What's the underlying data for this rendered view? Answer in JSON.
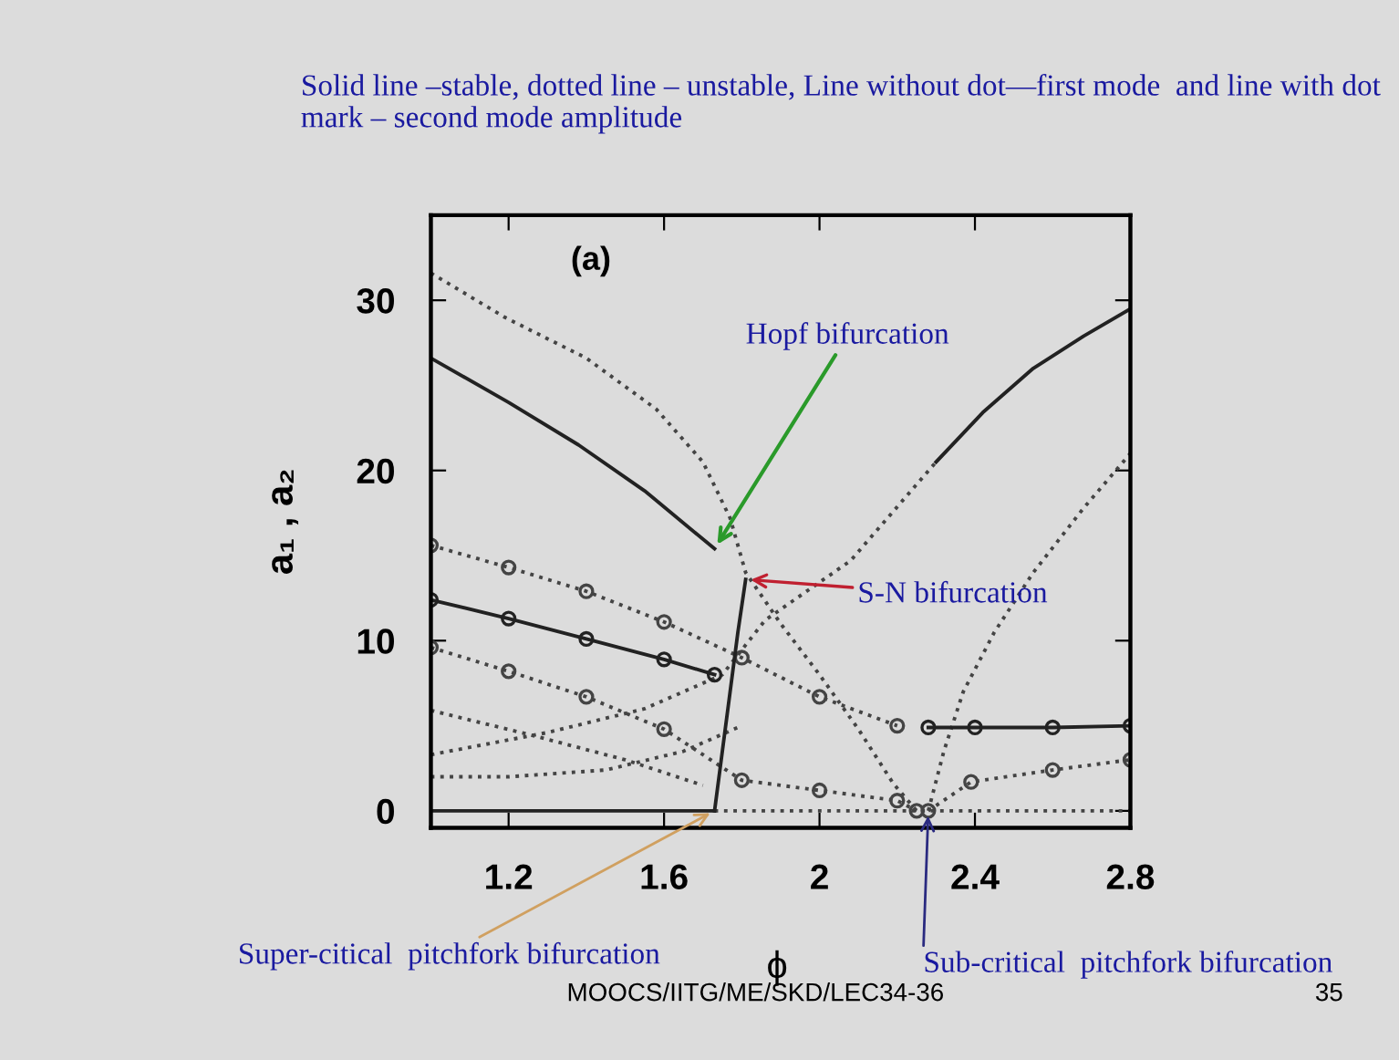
{
  "chart_data": {
    "type": "line",
    "title": "Solid line –stable, dotted line – unstable, Line without dot—first mode  and line with dot mark – second mode amplitude",
    "xlabel": "ϕ",
    "ylabel": "a₁ , a₂",
    "xlim": [
      1.0,
      2.8
    ],
    "ylim": [
      -1,
      35
    ],
    "xticks": [
      1.2,
      1.6,
      2,
      2.4,
      2.8
    ],
    "yticks": [
      0,
      10,
      20,
      30
    ],
    "grid": false,
    "legend": false,
    "series": [
      {
        "color": "#222222",
        "line_style": "solid",
        "marker": "none",
        "x": [
          1.0,
          1.2,
          1.38,
          1.55,
          1.73
        ],
        "values": [
          26.6,
          24.0,
          21.5,
          18.8,
          15.4
        ]
      },
      {
        "color": "#444444",
        "line_style": "dotted",
        "marker": "none",
        "x": [
          1.0,
          1.19,
          1.4,
          1.58,
          1.7,
          1.77,
          1.81,
          1.9,
          2.0,
          2.1,
          2.19,
          2.25
        ],
        "values": [
          31.6,
          29.0,
          26.6,
          23.6,
          20.5,
          17.2,
          14.0,
          11.0,
          8.0,
          4.8,
          1.6,
          0
        ]
      },
      {
        "color": "#222222",
        "line_style": "solid",
        "marker": "none",
        "x": [
          2.3,
          2.42,
          2.55,
          2.68,
          2.8
        ],
        "values": [
          20.5,
          23.4,
          26.0,
          27.9,
          29.5
        ]
      },
      {
        "color": "#444444",
        "line_style": "dotted",
        "marker": "none",
        "x": [
          1.0,
          1.3,
          1.55,
          1.75,
          1.86,
          2.08,
          2.3
        ],
        "values": [
          3.3,
          4.6,
          6.0,
          8.0,
          11.2,
          14.7,
          20.5
        ]
      },
      {
        "color": "#444444",
        "line_style": "dotted",
        "marker": "none",
        "x": [
          2.28,
          2.32,
          2.37,
          2.45,
          2.55,
          2.68,
          2.8
        ],
        "values": [
          0,
          3.5,
          7.0,
          10.5,
          14.0,
          17.8,
          21.0
        ]
      },
      {
        "color": "#222222",
        "line_style": "solid",
        "marker": "circle",
        "x": [
          1.0,
          1.2,
          1.4,
          1.6,
          1.73
        ],
        "values": [
          12.4,
          11.3,
          10.1,
          8.9,
          8.0
        ]
      },
      {
        "color": "#444444",
        "line_style": "dotted",
        "marker": "circle",
        "x": [
          1.0,
          1.2,
          1.4,
          1.6,
          1.8,
          2.0,
          2.2
        ],
        "values": [
          15.6,
          14.3,
          12.9,
          11.1,
          9.0,
          6.7,
          5.0
        ]
      },
      {
        "color": "#222222",
        "line_style": "solid",
        "marker": "circle",
        "x": [
          2.28,
          2.4,
          2.6,
          2.8
        ],
        "values": [
          4.9,
          4.9,
          4.9,
          5.0
        ]
      },
      {
        "color": "#444444",
        "line_style": "dotted",
        "marker": "circle",
        "x": [
          1.0,
          1.2,
          1.4,
          1.6,
          1.8,
          2.0,
          2.2,
          2.25
        ],
        "values": [
          9.6,
          8.2,
          6.7,
          4.8,
          1.8,
          1.2,
          0.6,
          0
        ]
      },
      {
        "color": "#444444",
        "line_style": "dotted",
        "marker": "circle",
        "x": [
          2.28,
          2.39,
          2.6,
          2.8
        ],
        "values": [
          0,
          1.7,
          2.4,
          3.0
        ]
      },
      {
        "color": "#444444",
        "line_style": "dotted",
        "marker": "none",
        "x": [
          1.0,
          1.25,
          1.5,
          1.7
        ],
        "values": [
          5.9,
          4.5,
          3.0,
          1.5
        ]
      },
      {
        "color": "#444444",
        "line_style": "dotted",
        "marker": "none",
        "x": [
          1.0,
          1.2,
          1.45,
          1.65,
          1.8
        ],
        "values": [
          2.0,
          2.0,
          2.4,
          3.5,
          5.0
        ]
      },
      {
        "color": "#222222",
        "line_style": "solid",
        "marker": "none",
        "x": [
          1.0,
          1.2,
          1.4,
          1.6,
          1.73
        ],
        "values": [
          0,
          0,
          0,
          0,
          0
        ]
      },
      {
        "color": "#444444",
        "line_style": "dotted",
        "marker": "none",
        "x": [
          1.73,
          2.0,
          2.28,
          2.5,
          2.8
        ],
        "values": [
          0,
          0,
          0,
          0,
          0
        ]
      },
      {
        "color": "#222222",
        "line_style": "solid",
        "marker": "none",
        "x": [
          1.73,
          1.75,
          1.77,
          1.79,
          1.81
        ],
        "values": [
          0,
          3.5,
          7.0,
          10.5,
          13.6
        ]
      }
    ],
    "annotations": [
      {
        "text": "(a)"
      },
      {
        "text": "Hopf bifurcation",
        "x": 1.73,
        "y": 15.4
      },
      {
        "text": "S-N bifurcation",
        "x": 1.81,
        "y": 13.6
      },
      {
        "text": "Super-citical  pitchfork bifurcation",
        "x": 1.73,
        "y": 0
      },
      {
        "text": "Sub-critical  pitchfork bifurcation",
        "x": 2.28,
        "y": 0
      },
      {
        "text": "MOOCS/IITG/ME/SKD/LEC34-36"
      },
      {
        "text": "35"
      }
    ]
  }
}
